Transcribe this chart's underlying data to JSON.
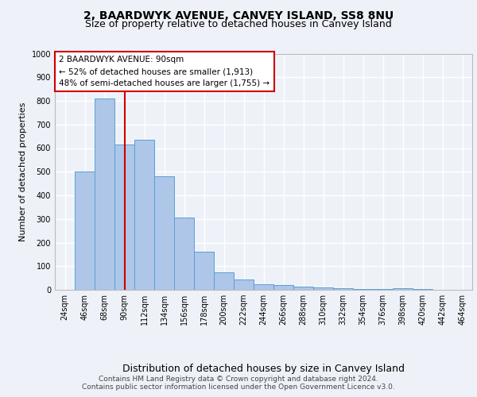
{
  "title": "2, BAARDWYK AVENUE, CANVEY ISLAND, SS8 8NU",
  "subtitle": "Size of property relative to detached houses in Canvey Island",
  "xlabel": "Distribution of detached houses by size in Canvey Island",
  "ylabel": "Number of detached properties",
  "footer_line1": "Contains HM Land Registry data © Crown copyright and database right 2024.",
  "footer_line2": "Contains public sector information licensed under the Open Government Licence v3.0.",
  "categories": [
    "24sqm",
    "46sqm",
    "68sqm",
    "90sqm",
    "112sqm",
    "134sqm",
    "156sqm",
    "178sqm",
    "200sqm",
    "222sqm",
    "244sqm",
    "266sqm",
    "288sqm",
    "310sqm",
    "332sqm",
    "354sqm",
    "376sqm",
    "398sqm",
    "420sqm",
    "442sqm",
    "464sqm"
  ],
  "values": [
    0,
    500,
    810,
    615,
    635,
    480,
    305,
    160,
    75,
    45,
    25,
    20,
    12,
    10,
    8,
    5,
    4,
    8,
    2,
    0,
    0
  ],
  "bar_color": "#aec6e8",
  "bar_edge_color": "#5a9fd4",
  "vline_x": 3,
  "vline_color": "#cc0000",
  "annotation_text": "2 BAARDWYK AVENUE: 90sqm\n← 52% of detached houses are smaller (1,913)\n48% of semi-detached houses are larger (1,755) →",
  "annotation_box_color": "#ffffff",
  "annotation_box_edge": "#cc0000",
  "ylim": [
    0,
    1000
  ],
  "yticks": [
    0,
    100,
    200,
    300,
    400,
    500,
    600,
    700,
    800,
    900,
    1000
  ],
  "bg_color": "#eef2f8",
  "plot_bg_color": "#eef2f8",
  "grid_color": "#ffffff",
  "title_fontsize": 10,
  "subtitle_fontsize": 9,
  "xlabel_fontsize": 9,
  "ylabel_fontsize": 8,
  "tick_fontsize": 7,
  "annotation_fontsize": 7.5,
  "footer_fontsize": 6.5
}
